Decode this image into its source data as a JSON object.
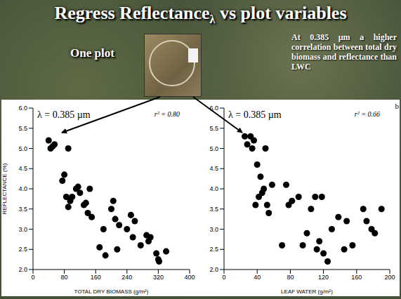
{
  "slide": {
    "title": {
      "text": "Regress Reflectance",
      "subscript": "λ",
      "rest": " vs plot variables"
    },
    "photo_label": "One plot",
    "note": "At 0.385 µm a higher correlation between total dry biomass and reflectance than LWC"
  },
  "chart_data": [
    {
      "type": "scatter",
      "title": "λ = 0.385 µm",
      "annotation": "r² = 0.80",
      "x_label": "TOTAL DRY BIOMASS (g/m²)",
      "y_label": "REFLECTANCE (%)",
      "color": "#000000",
      "marker": "circle",
      "x": [
        40,
        45,
        50,
        55,
        90,
        75,
        80,
        85,
        90,
        95,
        100,
        110,
        115,
        120,
        130,
        135,
        140,
        145,
        150,
        170,
        180,
        185,
        200,
        205,
        210,
        215,
        220,
        240,
        250,
        255,
        260,
        275,
        290,
        295,
        300,
        315,
        320,
        322,
        340
      ],
      "values": [
        5.2,
        5.0,
        5.05,
        5.1,
        5.0,
        4.2,
        4.35,
        3.8,
        3.55,
        3.7,
        3.8,
        4.0,
        4.05,
        3.9,
        3.6,
        3.65,
        3.4,
        4.0,
        3.3,
        2.55,
        3.0,
        2.35,
        3.5,
        3.7,
        3.25,
        2.5,
        3.1,
        3.0,
        3.35,
        2.8,
        3.2,
        2.6,
        2.85,
        2.7,
        2.8,
        2.4,
        2.25,
        2.2,
        2.45
      ],
      "xlim": [
        0,
        400
      ],
      "xticks": [
        0,
        80,
        160,
        240,
        320,
        400
      ],
      "ylim": [
        2,
        6
      ],
      "yticks": [
        {
          "value": 2,
          "label": "2.0"
        },
        2.5,
        {
          "value": 3,
          "label": "3.0"
        },
        3.5,
        {
          "value": 4,
          "label": "4.0"
        },
        4.5,
        {
          "value": 5,
          "label": "5.0"
        },
        5.5,
        {
          "value": 6,
          "label": "6.0"
        }
      ]
    },
    {
      "type": "scatter",
      "title": "λ = 0.385 µm",
      "annotation": "r² = 0.66",
      "panel": "b",
      "x_label": "LEAF WATER (g/m²)",
      "color": "#000000",
      "marker": "circle",
      "x": [
        25,
        28,
        32,
        34,
        36,
        38,
        40,
        42,
        44,
        46,
        48,
        50,
        52,
        54,
        58,
        70,
        75,
        78,
        82,
        90,
        95,
        100,
        105,
        110,
        112,
        115,
        118,
        120,
        125,
        130,
        138,
        145,
        148,
        155,
        168,
        172,
        178,
        182,
        190
      ],
      "values": [
        5.3,
        5.1,
        5.3,
        5.0,
        5.2,
        3.6,
        4.6,
        3.8,
        4.3,
        3.9,
        4.0,
        5.0,
        3.6,
        3.4,
        4.1,
        2.6,
        4.1,
        3.6,
        3.7,
        3.8,
        2.6,
        2.9,
        3.5,
        3.8,
        2.5,
        2.7,
        3.8,
        2.4,
        2.2,
        3.0,
        3.3,
        2.5,
        3.2,
        2.6,
        3.5,
        3.2,
        3.0,
        2.9,
        3.5
      ],
      "xlim": [
        0,
        200
      ],
      "xticks": [
        0,
        40,
        80,
        120,
        160,
        200
      ],
      "ylim": [
        2,
        6
      ],
      "yticks": [
        {
          "value": 2,
          "label": "2.0"
        },
        2.5,
        {
          "value": 3,
          "label": "3.0"
        },
        3.5,
        {
          "value": 4,
          "label": "4.0"
        },
        4.5,
        {
          "value": 5,
          "label": "5.0"
        },
        5.5,
        {
          "value": 6,
          "label": "6.0"
        }
      ]
    }
  ]
}
